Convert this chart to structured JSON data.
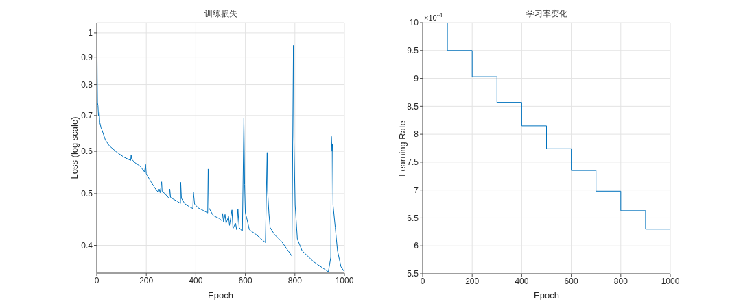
{
  "chart_data": [
    {
      "type": "line",
      "title": "训练损失",
      "xlabel": "Epoch",
      "ylabel": "Loss (log scale)",
      "log": true,
      "grid": true,
      "xlim": [
        0,
        1000
      ],
      "xticks": [
        0,
        200,
        400,
        600,
        800,
        1000
      ],
      "ylim": [
        0.355,
        1.045
      ],
      "yticks": [
        0.4,
        0.5,
        0.6,
        0.7,
        0.8,
        0.9,
        1
      ],
      "series": [
        {
          "color": "#0072bd",
          "x": [
            0,
            1,
            2,
            3,
            5,
            7,
            10,
            12,
            15,
            17,
            20,
            25,
            35,
            50,
            80,
            110,
            137,
            139,
            141,
            155,
            175,
            193,
            197,
            200,
            220,
            238,
            248,
            252,
            256,
            262,
            264,
            275,
            292,
            295,
            298,
            310,
            328,
            338,
            339,
            342,
            355,
            375,
            388,
            390,
            395,
            410,
            430,
            448,
            450,
            453,
            470,
            495,
            505,
            508,
            512,
            518,
            522,
            532,
            536,
            546,
            550,
            560,
            565,
            570,
            575,
            588,
            594,
            597,
            600,
            607,
            616,
            644,
            681,
            688,
            690,
            695,
            700,
            718,
            746,
            788,
            794,
            796,
            801,
            810,
            829,
            875,
            935,
            945,
            947,
            950,
            952,
            954,
            963,
            972,
            986,
            1000
          ],
          "values": [
            1.04,
            0.95,
            0.82,
            0.74,
            0.73,
            0.7,
            0.71,
            0.68,
            0.672,
            0.665,
            0.66,
            0.65,
            0.63,
            0.615,
            0.598,
            0.585,
            0.577,
            0.59,
            0.58,
            0.571,
            0.563,
            0.549,
            0.567,
            0.545,
            0.525,
            0.51,
            0.503,
            0.51,
            0.502,
            0.526,
            0.505,
            0.5,
            0.49,
            0.51,
            0.492,
            0.488,
            0.483,
            0.479,
            0.525,
            0.49,
            0.479,
            0.472,
            0.469,
            0.504,
            0.478,
            0.47,
            0.465,
            0.46,
            0.556,
            0.47,
            0.455,
            0.449,
            0.445,
            0.459,
            0.443,
            0.457,
            0.44,
            0.453,
            0.436,
            0.466,
            0.43,
            0.44,
            0.428,
            0.467,
            0.432,
            0.425,
            0.692,
            0.52,
            0.46,
            0.447,
            0.428,
            0.419,
            0.405,
            0.597,
            0.505,
            0.46,
            0.432,
            0.419,
            0.407,
            0.382,
            0.947,
            0.64,
            0.476,
            0.411,
            0.391,
            0.373,
            0.357,
            0.38,
            0.64,
            0.6,
            0.62,
            0.476,
            0.432,
            0.391,
            0.365,
            0.357
          ]
        }
      ]
    },
    {
      "type": "step",
      "title": "学习率变化",
      "xlabel": "Epoch",
      "ylabel": "Learning Rate",
      "annotations": [
        "×10$^{-4}$"
      ],
      "grid": true,
      "xlim": [
        0,
        1000
      ],
      "xticks": [
        0,
        200,
        400,
        600,
        800,
        1000
      ],
      "ylim": [
        5.5,
        10
      ],
      "yticks": [
        5.5,
        6,
        6.5,
        7,
        7.5,
        8,
        8.5,
        9,
        9.5,
        10
      ],
      "series": [
        {
          "color": "#0072bd",
          "x": [
            0,
            100,
            200,
            300,
            400,
            500,
            600,
            700,
            800,
            900,
            1000
          ],
          "values": [
            10,
            9.5,
            9.03,
            8.57,
            8.15,
            7.74,
            7.35,
            6.98,
            6.63,
            6.3,
            5.99
          ]
        }
      ]
    }
  ]
}
